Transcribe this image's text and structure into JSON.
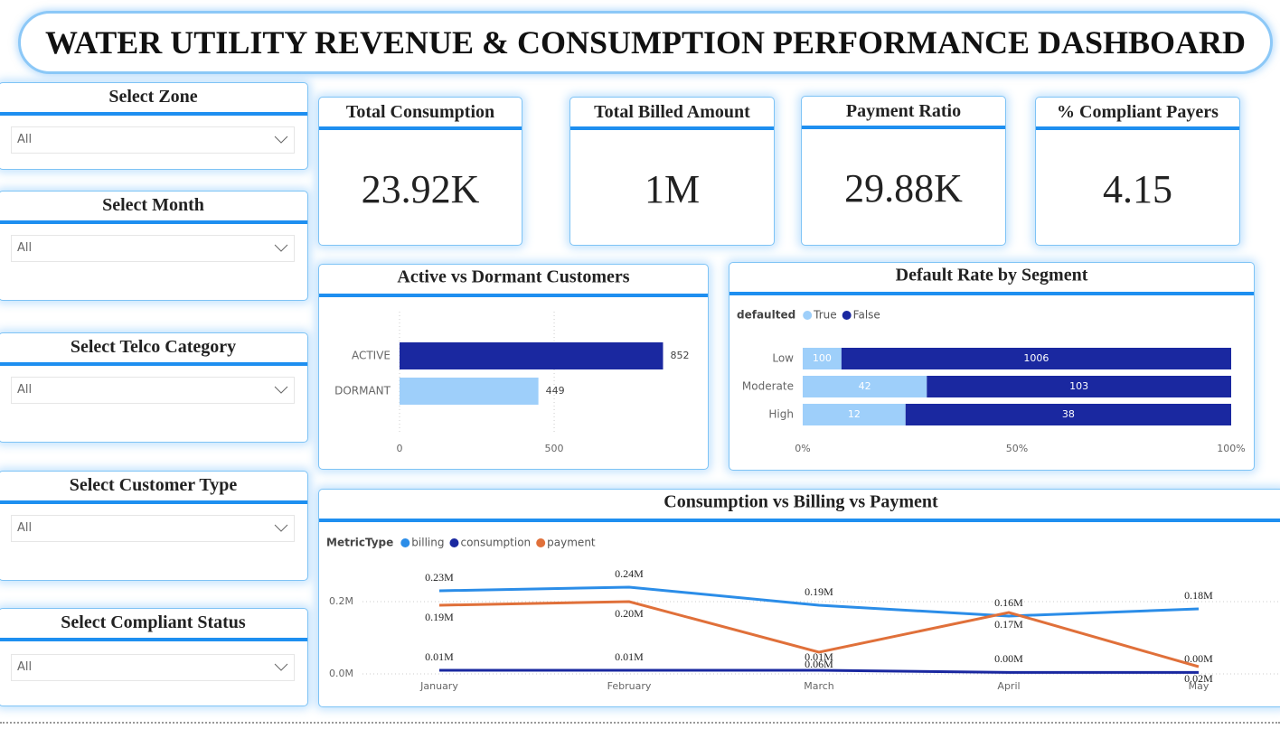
{
  "title": "WATER UTILITY REVENUE & CONSUMPTION PERFORMANCE DASHBOARD",
  "slicers": [
    {
      "label": "Select Zone",
      "value": "All"
    },
    {
      "label": "Select Month",
      "value": "All"
    },
    {
      "label": "Select Telco Category",
      "value": "All"
    },
    {
      "label": "Select Customer Type",
      "value": "All"
    },
    {
      "label": "Select Compliant Status",
      "value": "All"
    }
  ],
  "kpis": [
    {
      "label": "Total Consumption",
      "value": "23.92K"
    },
    {
      "label": "Total Billed Amount",
      "value": "1M"
    },
    {
      "label": "Payment Ratio",
      "value": "29.88K"
    },
    {
      "label": "% Compliant Payers",
      "value": "4.15"
    }
  ],
  "chart_data": [
    {
      "type": "bar",
      "orientation": "horizontal",
      "title": "Active vs Dormant Customers",
      "categories": [
        "ACTIVE",
        "DORMANT"
      ],
      "values": [
        852,
        449
      ],
      "colors": [
        "#1a28a0",
        "#9ecffa"
      ],
      "xlim": [
        0,
        950
      ],
      "xticks": [
        0,
        500
      ],
      "grid": true
    },
    {
      "type": "bar",
      "orientation": "horizontal",
      "stacked": "percent",
      "title": "Default Rate by Segment",
      "legend_title": "defaulted",
      "categories": [
        "Low",
        "Moderate",
        "High"
      ],
      "series": [
        {
          "name": "True",
          "color": "#9ecffa",
          "values": [
            100,
            42,
            12
          ]
        },
        {
          "name": "False",
          "color": "#1a28a0",
          "values": [
            1006,
            103,
            38
          ]
        }
      ],
      "xlim": [
        0,
        100
      ],
      "xticks": [
        {
          "value": 0,
          "label": "0%"
        },
        {
          "value": 50,
          "label": "50%"
        },
        {
          "value": 100,
          "label": "100%"
        }
      ]
    },
    {
      "type": "line",
      "title": "Consumption vs Billing vs Payment",
      "legend_title": "MetricType",
      "categories": [
        "January",
        "February",
        "March",
        "April",
        "May"
      ],
      "series": [
        {
          "name": "billing",
          "color": "#2b8de8",
          "values": [
            0.23,
            0.24,
            0.19,
            0.16,
            0.18
          ],
          "value_labels": [
            "0.23M",
            "0.24M",
            "0.19M",
            "0.16M",
            "0.18M"
          ]
        },
        {
          "name": "consumption",
          "color": "#1a28a0",
          "values": [
            0.01,
            0.01,
            0.01,
            0.004,
            0.004
          ],
          "value_labels": [
            "0.01M",
            "0.01M",
            "0.01M",
            "0.00M",
            "0.00M"
          ]
        },
        {
          "name": "payment",
          "color": "#e0703a",
          "values": [
            0.19,
            0.2,
            0.06,
            0.17,
            0.02
          ],
          "value_labels": [
            "0.19M",
            "0.20M",
            "0.06M",
            "0.17M",
            "0.02M"
          ]
        }
      ],
      "ylim": [
        0,
        0.28
      ],
      "yticks": [
        {
          "value": 0,
          "label": "0.0M"
        },
        {
          "value": 0.2,
          "label": "0.2M"
        }
      ],
      "grid": true
    }
  ]
}
